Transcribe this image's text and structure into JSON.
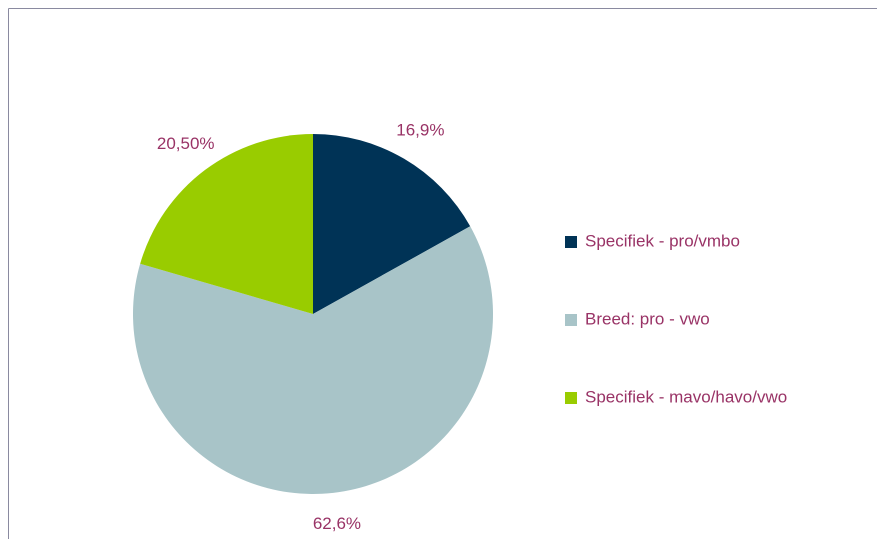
{
  "chart_data": {
    "type": "pie",
    "categories": [
      "Specifiek - pro/vmbo",
      "Breed: pro - vwo",
      "Specifiek - mavo/havo/vwo"
    ],
    "values": [
      16.9,
      62.6,
      20.5
    ],
    "value_labels": [
      "16,9%",
      "62,6%",
      "20,50%"
    ],
    "colors": [
      "#003356",
      "#a8c4c8",
      "#99cc00"
    ],
    "legend": "right"
  }
}
